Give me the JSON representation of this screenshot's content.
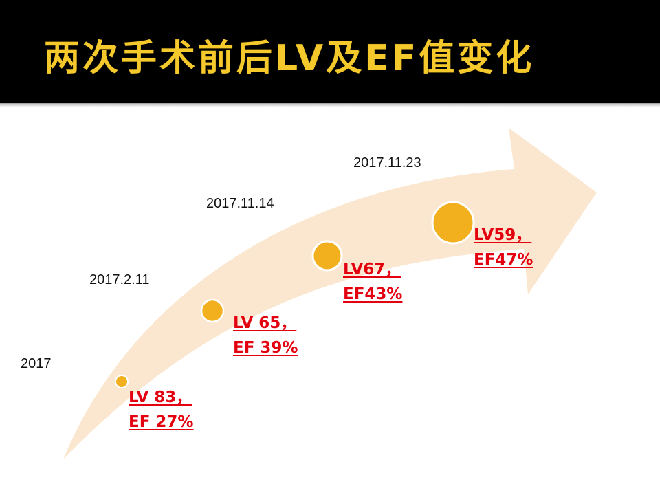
{
  "slide": {
    "title": "两次手术前后LV及EF值变化"
  },
  "timeline": [
    {
      "date": "2017",
      "lv": "LV 83，",
      "ef": "EF 27%"
    },
    {
      "date": "2017.2.11",
      "lv": "LV 65，",
      "ef": "EF 39%"
    },
    {
      "date": "2017.11.14",
      "lv": "LV67，",
      "ef": "EF43%"
    },
    {
      "date": "2017.11.23",
      "lv": "LV59，",
      "ef": "EF47%"
    }
  ],
  "colors": {
    "header_bg": "#000000",
    "title": "#f5c92c",
    "arrow": "#fbe7d0",
    "marker": "#f2b01e",
    "value_text": "#e3000f"
  }
}
